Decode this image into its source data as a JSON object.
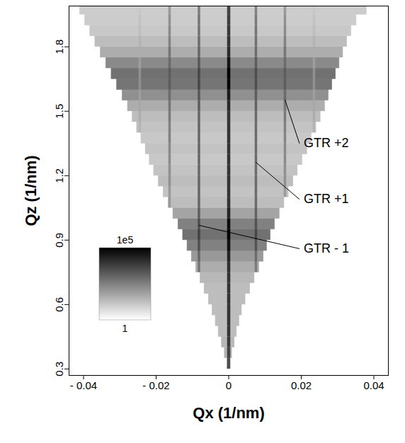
{
  "chart_data": {
    "type": "heatmap",
    "xlabel": "Qx (1/nm)",
    "ylabel": "Qz (1/nm)",
    "xlim": [
      -0.044,
      0.044
    ],
    "ylim": [
      0.27,
      1.99
    ],
    "xticks": [
      {
        "value": -0.04,
        "label": "- 0.04"
      },
      {
        "value": -0.02,
        "label": "- 0.02"
      },
      0,
      0.02,
      0.04
    ],
    "yticks": [
      0.3,
      0.6,
      0.9,
      1.2,
      1.5,
      1.8
    ],
    "qz_bins": [
      0.3,
      0.35,
      0.4,
      0.45,
      0.5,
      0.55,
      0.6,
      0.65,
      0.7,
      0.75,
      0.8,
      0.85,
      0.9,
      0.95,
      1.0,
      1.05,
      1.1,
      1.15,
      1.2,
      1.25,
      1.3,
      1.35,
      1.4,
      1.45,
      1.5,
      1.55,
      1.6,
      1.65,
      1.7,
      1.75,
      1.8,
      1.85,
      1.9,
      1.95,
      1.99
    ],
    "qx_min": [
      -0.0004,
      -0.0011,
      -0.0019,
      -0.0028,
      -0.0036,
      -0.0045,
      -0.0055,
      -0.0067,
      -0.0078,
      -0.009,
      -0.0102,
      -0.0114,
      -0.0126,
      -0.0139,
      -0.0153,
      -0.0166,
      -0.018,
      -0.0193,
      -0.0206,
      -0.0218,
      -0.0229,
      -0.0241,
      -0.0253,
      -0.0265,
      -0.0278,
      -0.0293,
      -0.0308,
      -0.0323,
      -0.0338,
      -0.0353,
      -0.0368,
      -0.0382,
      -0.0396,
      -0.041
    ],
    "qx_max": [
      0.0003,
      0.0009,
      0.0016,
      0.0022,
      0.0029,
      0.0036,
      0.0046,
      0.0059,
      0.0071,
      0.0084,
      0.0096,
      0.0105,
      0.0115,
      0.0127,
      0.014,
      0.0153,
      0.0165,
      0.0178,
      0.019,
      0.0203,
      0.0216,
      0.0228,
      0.0241,
      0.0253,
      0.0265,
      0.0275,
      0.0285,
      0.0295,
      0.0305,
      0.0315,
      0.0326,
      0.0338,
      0.0352,
      0.038
    ],
    "background": [
      30,
      30,
      25,
      20,
      20,
      20,
      20,
      20,
      25,
      40,
      100,
      300,
      600,
      300,
      60,
      20,
      15,
      20,
      15,
      12,
      15,
      12,
      15,
      20,
      40,
      150,
      500,
      600,
      200,
      40,
      20,
      12,
      10,
      10
    ],
    "rods": [
      {
        "qx": -0.0245,
        "values": [
          null,
          null,
          null,
          null,
          null,
          null,
          null,
          null,
          null,
          null,
          null,
          null,
          null,
          null,
          null,
          null,
          null,
          null,
          null,
          null,
          null,
          null,
          30,
          40,
          50,
          80,
          150,
          150,
          80,
          40,
          30,
          20,
          15,
          12
        ]
      },
      {
        "qx": -0.0163,
        "values": [
          null,
          null,
          null,
          null,
          null,
          null,
          null,
          null,
          null,
          null,
          null,
          null,
          null,
          null,
          null,
          100,
          100,
          150,
          150,
          200,
          200,
          300,
          300,
          400,
          500,
          800,
          1500,
          1500,
          800,
          500,
          300,
          200,
          150,
          100
        ]
      },
      {
        "qx": -0.0082,
        "values": [
          null,
          null,
          null,
          null,
          null,
          null,
          null,
          null,
          null,
          500,
          1000,
          3000,
          5000,
          3000,
          1500,
          1000,
          1000,
          1000,
          1000,
          1000,
          1000,
          1000,
          1000,
          1000,
          1500,
          2000,
          4000,
          4000,
          2000,
          1000,
          800,
          600,
          500,
          400
        ]
      },
      {
        "qx": 0,
        "values": [
          3000,
          5000,
          8000,
          10000,
          10000,
          10000,
          10000,
          10000,
          10000,
          12000,
          20000,
          50000,
          100000,
          60000,
          20000,
          10000,
          10000,
          10000,
          10000,
          10000,
          10000,
          10000,
          10000,
          10000,
          15000,
          30000,
          80000,
          100000,
          40000,
          15000,
          10000,
          8000,
          6000,
          5000
        ]
      },
      {
        "qx": 0.0075,
        "values": [
          null,
          null,
          null,
          null,
          null,
          null,
          null,
          null,
          null,
          400,
          800,
          2500,
          4000,
          2500,
          1200,
          800,
          800,
          800,
          800,
          800,
          800,
          800,
          800,
          800,
          1200,
          1500,
          3000,
          3000,
          1500,
          800,
          600,
          500,
          400,
          300
        ]
      },
      {
        "qx": 0.0155,
        "values": [
          null,
          null,
          null,
          null,
          null,
          null,
          null,
          null,
          null,
          null,
          null,
          null,
          null,
          null,
          null,
          null,
          100,
          150,
          150,
          200,
          200,
          250,
          300,
          400,
          500,
          800,
          1500,
          1500,
          800,
          500,
          300,
          200,
          150,
          100
        ]
      },
      {
        "qx": 0.0235,
        "values": [
          null,
          null,
          null,
          null,
          null,
          null,
          null,
          null,
          null,
          null,
          null,
          null,
          null,
          null,
          null,
          null,
          null,
          null,
          null,
          null,
          null,
          null,
          30,
          40,
          50,
          80,
          150,
          150,
          80,
          40,
          30,
          20,
          15,
          12
        ]
      }
    ],
    "colorbar": {
      "range": [
        1,
        100000
      ],
      "log": true,
      "ticks": [
        {
          "value": 100000,
          "label": "1e5"
        },
        {
          "value": 1,
          "label": "1"
        }
      ]
    },
    "annotations": [
      {
        "text": "GTR +2",
        "xy": [
          0.0155,
          1.554
        ],
        "xytext": [
          0.0195,
          1.35
        ]
      },
      {
        "text": "GTR +1",
        "xy": [
          0.0075,
          1.262
        ],
        "xytext": [
          0.0195,
          1.09
        ]
      },
      {
        "text": "GTR - 1",
        "xy": [
          -0.0082,
          0.969
        ],
        "xytext": [
          0.0195,
          0.86
        ]
      }
    ]
  }
}
